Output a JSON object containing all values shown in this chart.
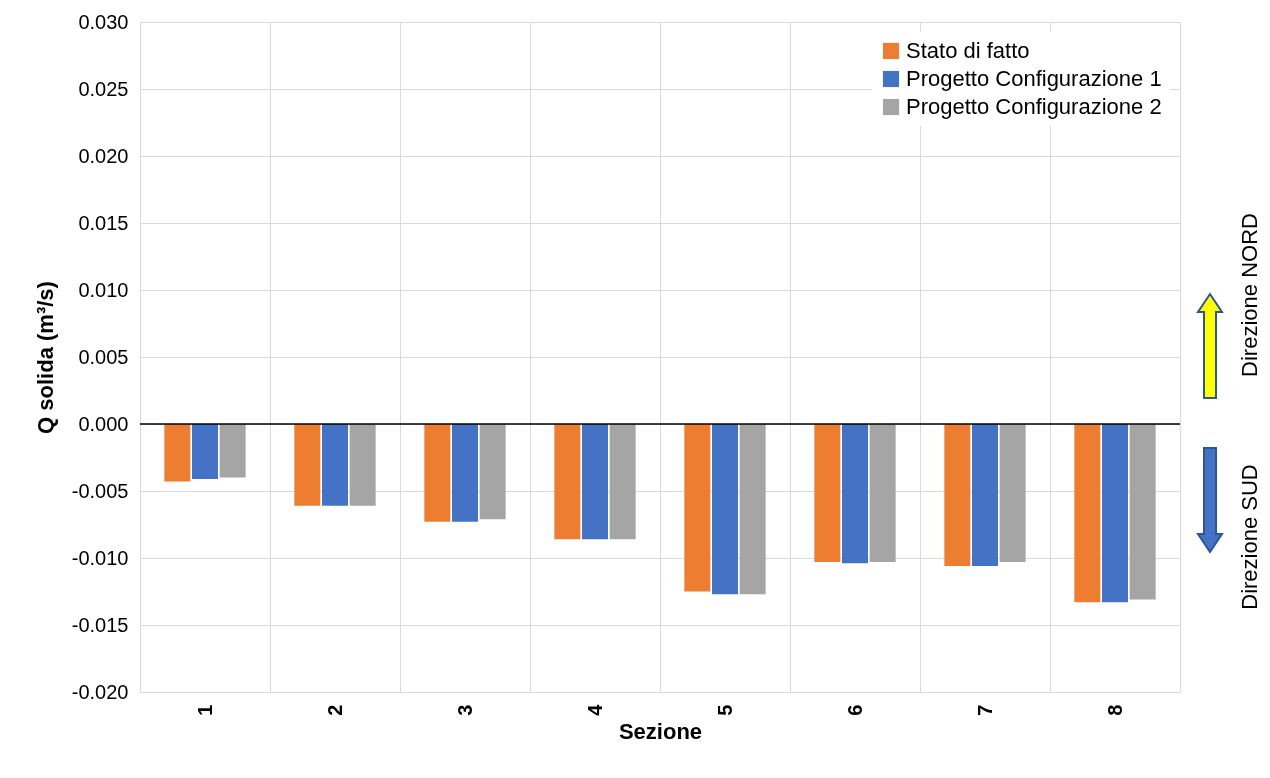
{
  "chart_data": {
    "type": "bar",
    "xlabel": "Sezione",
    "ylabel": "Q solida (m³/s)",
    "categories": [
      "1",
      "2",
      "3",
      "4",
      "5",
      "6",
      "7",
      "8"
    ],
    "series": [
      {
        "name": "Stato di fatto",
        "color": "#ed7d31",
        "values": [
          -0.0043,
          -0.0061,
          -0.0073,
          -0.0086,
          -0.0125,
          -0.0103,
          -0.0106,
          -0.0133
        ]
      },
      {
        "name": "Progetto Configurazione 1",
        "color": "#4472c4",
        "values": [
          -0.0041,
          -0.0061,
          -0.0073,
          -0.0086,
          -0.0127,
          -0.0104,
          -0.0106,
          -0.0133
        ]
      },
      {
        "name": "Progetto Configurazione 2",
        "color": "#a5a5a5",
        "values": [
          -0.004,
          -0.0061,
          -0.0071,
          -0.0086,
          -0.0127,
          -0.0103,
          -0.0103,
          -0.0131
        ]
      }
    ],
    "ylim": [
      -0.02,
      0.03
    ],
    "yticks": [
      {
        "value": -0.02,
        "label": "-0.020"
      },
      {
        "value": -0.015,
        "label": "-0.015"
      },
      {
        "value": -0.01,
        "label": "-0.010"
      },
      {
        "value": -0.005,
        "label": "-0.005"
      },
      {
        "value": 0,
        "label": "0.000"
      },
      {
        "value": 0.005,
        "label": "0.005"
      },
      {
        "value": 0.01,
        "label": "0.010"
      },
      {
        "value": 0.015,
        "label": "0.015"
      },
      {
        "value": 0.02,
        "label": "0.020"
      },
      {
        "value": 0.025,
        "label": "0.025"
      },
      {
        "value": 0.03,
        "label": "0.030"
      }
    ],
    "ref_lines": [
      {
        "axis": "y",
        "value": 0,
        "color": "#000000"
      }
    ],
    "annotations": [
      "Direzione NORD",
      "Direzione SUD"
    ],
    "grid": true,
    "legend": "top right"
  }
}
